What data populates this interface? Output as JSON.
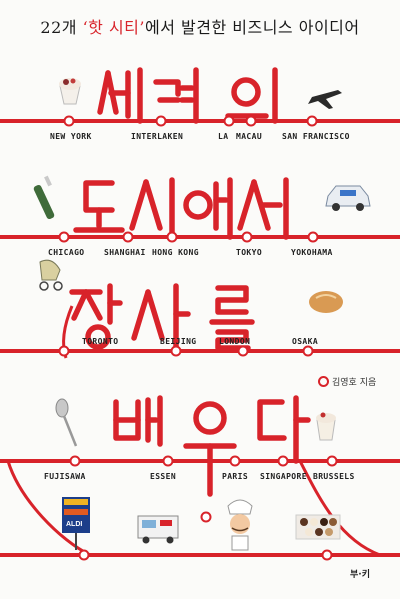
{
  "subtitle": {
    "prefix": "22개 ",
    "highlight": "‘핫 시티’",
    "suffix": "에서 발견한 비즈니스 아이디어"
  },
  "title": {
    "line1": "세계의",
    "line2": "도시에서",
    "line3": "장사를",
    "line4": "배우다"
  },
  "stations": {
    "row1": [
      "NEW YORK",
      "INTERLAKEN",
      "LA",
      "MACAU",
      "SAN FRANCISCO"
    ],
    "row2": [
      "CHICAGO",
      "SHANGHAI",
      "HONG KONG",
      "TOKYO",
      "YOKOHAMA"
    ],
    "row3": [
      "TORONTO",
      "BEIJING",
      "LONDON",
      "OSAKA"
    ],
    "row4": [
      "FUJISAWA",
      "ESSEN",
      "PARIS",
      "SINGAPORE",
      "BRUSSELS"
    ]
  },
  "author": "김영호 지음",
  "publisher": "부·키",
  "icons": {
    "aldi_sign": "ALDI"
  },
  "colors": {
    "line": "#d8232a",
    "text": "#1a1a1a"
  }
}
